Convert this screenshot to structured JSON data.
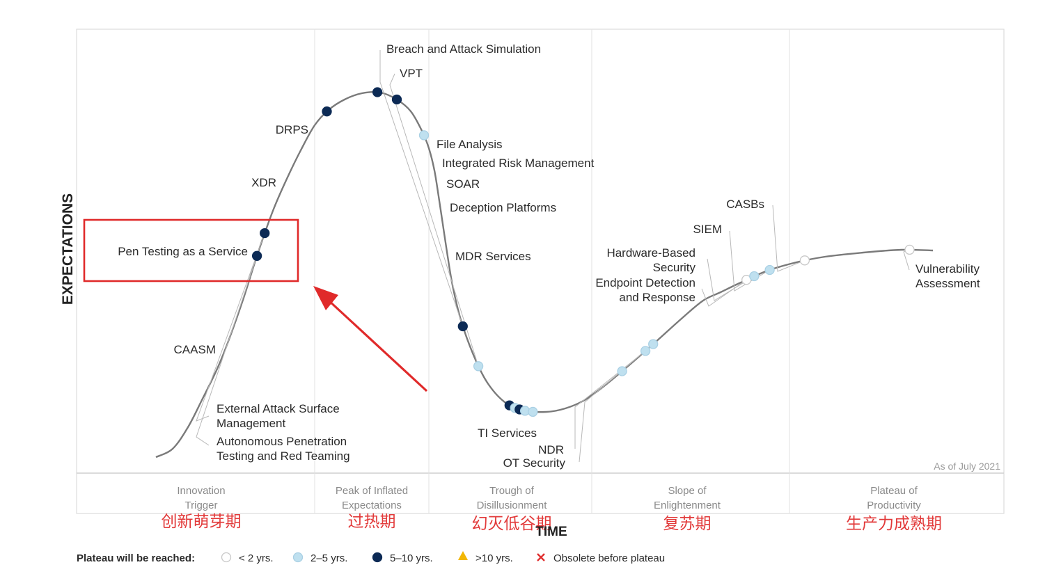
{
  "chart_data": {
    "type": "line",
    "title": "",
    "xlabel": "TIME",
    "ylabel": "EXPECTATIONS",
    "as_of": "As of July 2021",
    "colors": {
      "curve": "#7a7a7a",
      "lt2": "#ffffff",
      "2to5": "#bfe0ef",
      "5to10": "#0c2a55",
      "gt10": "#f2b705",
      "obsolete": "#e03030",
      "highlight": "#e02a2a"
    },
    "phases": [
      {
        "name": "Innovation\nTrigger",
        "cn": "创新萌芽期"
      },
      {
        "name": "Peak of Inflated\nExpectations",
        "cn": "过热期"
      },
      {
        "name": "Trough of\nDisillusionment",
        "cn": "幻灭低谷期"
      },
      {
        "name": "Slope of\nEnlightenment",
        "cn": "复苏期"
      },
      {
        "name": "Plateau of\nProductivity",
        "cn": "生产力成熟期"
      }
    ],
    "technologies": [
      {
        "name": "Autonomous Penetration\nTesting and Red Teaming",
        "t": 0.13,
        "cat": "5to10"
      },
      {
        "name": "External Attack Surface\nManagement",
        "t": 0.14,
        "cat": "5to10"
      },
      {
        "name": "CAASM",
        "t": 0.22,
        "cat": "5to10"
      },
      {
        "name": "Pen Testing as a Service",
        "t": 0.285,
        "cat": "5to10"
      },
      {
        "name": "XDR",
        "t": 0.31,
        "cat": "5to10"
      },
      {
        "name": "DRPS",
        "t": 0.345,
        "cat": "2to5"
      },
      {
        "name": "Breach and Attack Simulation",
        "t": 0.395,
        "cat": "5to10"
      },
      {
        "name": "VPT",
        "t": 0.415,
        "cat": "2to5"
      },
      {
        "name": "File Analysis",
        "t": 0.455,
        "cat": "5to10"
      },
      {
        "name": "Integrated Risk Management",
        "t": 0.462,
        "cat": "2to5"
      },
      {
        "name": "SOAR",
        "t": 0.468,
        "cat": "5to10"
      },
      {
        "name": "Deception Platforms",
        "t": 0.475,
        "cat": "2to5"
      },
      {
        "name": "MDR Services",
        "t": 0.485,
        "cat": "2to5"
      },
      {
        "name": "TI Services",
        "t": 0.6,
        "cat": "2to5"
      },
      {
        "name": "NDR",
        "t": 0.63,
        "cat": "2to5"
      },
      {
        "name": "OT Security",
        "t": 0.64,
        "cat": "2to5"
      },
      {
        "name": "Endpoint Detection\nand Response",
        "t": 0.76,
        "cat": "lt2"
      },
      {
        "name": "Hardware-Based\nSecurity",
        "t": 0.77,
        "cat": "2to5"
      },
      {
        "name": "SIEM",
        "t": 0.79,
        "cat": "2to5"
      },
      {
        "name": "CASBs",
        "t": 0.835,
        "cat": "lt2"
      },
      {
        "name": "Vulnerability\nAssessment",
        "t": 0.97,
        "cat": "lt2"
      }
    ],
    "highlight": "Pen Testing as a Service",
    "legend": {
      "title": "Plateau will be reached:",
      "items": [
        {
          "label": "< 2 yrs.",
          "cat": "lt2",
          "shape": "circle"
        },
        {
          "label": "2–5 yrs.",
          "cat": "2to5",
          "shape": "circle"
        },
        {
          "label": "5–10 yrs.",
          "cat": "5to10",
          "shape": "circle"
        },
        {
          "label": ">10 yrs.",
          "cat": "gt10",
          "shape": "triangle"
        },
        {
          "label": "Obsolete before plateau",
          "cat": "obsolete",
          "shape": "x"
        }
      ]
    }
  }
}
